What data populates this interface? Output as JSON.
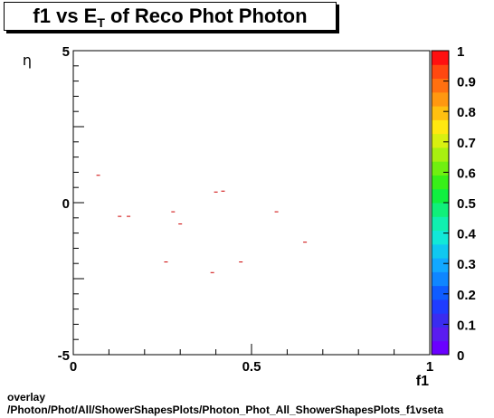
{
  "title": {
    "main": "f1 vs E",
    "sub": "T",
    "rest": " of Reco Phot Photon"
  },
  "footer": {
    "line1": "overlay",
    "line2": "/Photon/Phot/All/ShowerShapesPlots/Photon_Phot_All_ShowerShapesPlots_f1vseta"
  },
  "chart_data": {
    "type": "scatter",
    "xlabel": "f1",
    "ylabel": "η",
    "xlim": [
      0,
      1
    ],
    "ylim": [
      -5,
      5
    ],
    "x_ticks": [
      "0",
      "0.5",
      "1"
    ],
    "y_ticks": [
      "5",
      "0",
      "-5"
    ],
    "marker_color": "#cc0000",
    "points": [
      {
        "x": 0.07,
        "y": 0.9
      },
      {
        "x": 0.13,
        "y": -0.45
      },
      {
        "x": 0.155,
        "y": -0.45
      },
      {
        "x": 0.26,
        "y": -1.95
      },
      {
        "x": 0.28,
        "y": -0.3
      },
      {
        "x": 0.3,
        "y": -0.7
      },
      {
        "x": 0.39,
        "y": -2.3
      },
      {
        "x": 0.4,
        "y": 0.35
      },
      {
        "x": 0.42,
        "y": 0.38
      },
      {
        "x": 0.47,
        "y": -1.95
      },
      {
        "x": 0.57,
        "y": -0.3
      },
      {
        "x": 0.65,
        "y": -1.3
      }
    ],
    "colorbar": {
      "range": [
        0,
        1
      ],
      "labels": [
        "0",
        "0.1",
        "0.2",
        "0.3",
        "0.4",
        "0.5",
        "0.6",
        "0.7",
        "0.8",
        "0.9",
        "1"
      ],
      "colors": [
        "#6a00ff",
        "#5a1cf0",
        "#3a2cf0",
        "#1f3cff",
        "#0f5cff",
        "#0f86ff",
        "#12a8ff",
        "#10c8f0",
        "#12e8d8",
        "#10f0b0",
        "#10f07a",
        "#10f040",
        "#38f018",
        "#70f010",
        "#a8f010",
        "#d8f010",
        "#ffe810",
        "#ffc010",
        "#ff9810",
        "#ff7010",
        "#ff4810",
        "#ff1010"
      ]
    }
  }
}
